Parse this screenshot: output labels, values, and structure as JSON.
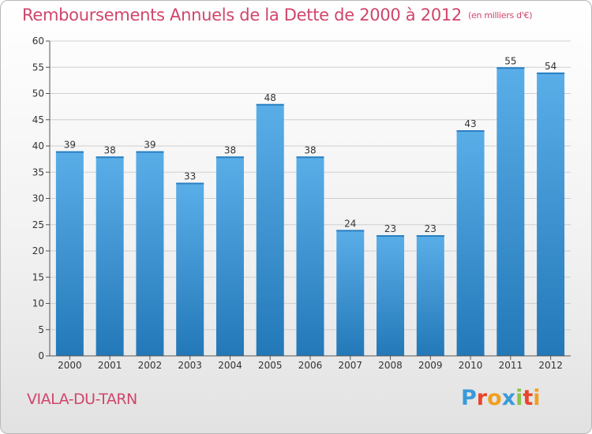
{
  "header": {
    "title": "Remboursements Annuels de la Dette de 2000 à 2012",
    "subtitle": "(en milliers d'€)"
  },
  "footer": {
    "commune": "VIALA-DU-TARN",
    "logo": "Proxiti"
  },
  "colors": {
    "title": "#d0456b",
    "bar_light": "#5aaee8",
    "bar_dark": "#2378b8",
    "logo_letters": [
      "#3a9ad9",
      "#e8452c",
      "#f0a020",
      "#3a9ad9",
      "#8bc34a",
      "#e8452c",
      "#f0a020"
    ]
  },
  "chart_data": {
    "type": "bar",
    "title": "Remboursements Annuels de la Dette de 2000 à 2012",
    "subtitle": "(en milliers d'€)",
    "categories": [
      "2000",
      "2001",
      "2002",
      "2003",
      "2004",
      "2005",
      "2006",
      "2007",
      "2008",
      "2009",
      "2010",
      "2011",
      "2012"
    ],
    "values": [
      39,
      38,
      39,
      33,
      38,
      48,
      38,
      24,
      23,
      23,
      43,
      55,
      54
    ],
    "ylim": [
      0,
      60
    ],
    "yticks": [
      0,
      5,
      10,
      15,
      20,
      25,
      30,
      35,
      40,
      45,
      50,
      55,
      60
    ],
    "grid": true,
    "xlabel": "",
    "ylabel": ""
  }
}
